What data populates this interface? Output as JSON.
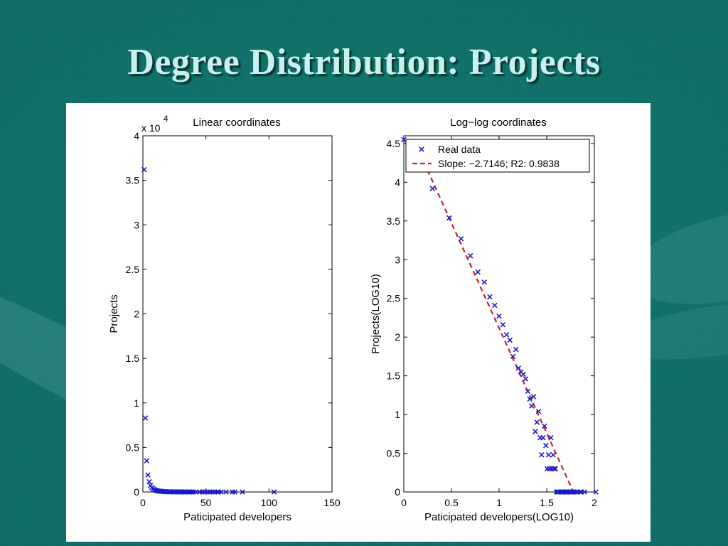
{
  "slide": {
    "title": "Degree Distribution: Projects"
  },
  "colors": {
    "marker": "#1a1acc",
    "fit_line": "#cc1f1f",
    "background": "#0f6e66",
    "title": "#c9f0ec"
  },
  "chart_data": [
    {
      "type": "scatter",
      "title": "Linear coordinates",
      "xlabel": "Paticipated developers",
      "ylabel": "Projects",
      "exponent_label": "x 10",
      "exponent_power": "4",
      "xlim": [
        0,
        150
      ],
      "ylim": [
        0,
        4
      ],
      "xticks": [
        0,
        50,
        100,
        150
      ],
      "yticks": [
        0,
        0.5,
        1,
        1.5,
        2,
        2.5,
        3,
        3.5,
        4
      ],
      "xtick_labels": [
        "0",
        "50",
        "100",
        "150"
      ],
      "ytick_labels": [
        "0",
        "0.5",
        "1",
        "1.5",
        "2",
        "2.5",
        "3",
        "3.5",
        "4"
      ],
      "grid": false,
      "marker": "x",
      "series": [
        {
          "x": [
            1,
            2,
            3,
            4,
            5,
            6,
            7,
            8,
            9,
            10,
            11,
            12,
            13,
            14,
            15,
            16,
            17,
            18,
            19,
            20,
            21,
            22,
            23,
            24,
            25,
            26,
            27,
            28,
            29,
            30,
            31,
            32,
            33,
            34,
            35,
            36,
            37,
            38,
            39,
            40,
            42,
            45,
            47,
            49,
            51,
            53,
            55,
            57,
            59,
            60,
            62,
            66,
            71,
            73,
            79,
            104
          ],
          "y": [
            3.62,
            0.83,
            0.35,
            0.19,
            0.115,
            0.072,
            0.05,
            0.036,
            0.027,
            0.02,
            0.015,
            0.012,
            0.01,
            0.008,
            0.006,
            0.005,
            0.004,
            0.003,
            0.0025,
            0.002,
            0.0018,
            0.0015,
            0.0012,
            0.001,
            0.001,
            0.0008,
            0.0007,
            0.0006,
            0.0005,
            0.0005,
            0.0004,
            0.0004,
            0.0003,
            0.0003,
            0.0003,
            0.0002,
            0.0002,
            0.0002,
            0.0002,
            0.0001,
            0.0001,
            0.0001,
            0.0001,
            0.0001,
            0.0001,
            0.0001,
            0.0001,
            0.0001,
            0.0001,
            0.0001,
            0.0001,
            0.0001,
            0.0001,
            0.0001,
            0.0001,
            0.0001
          ]
        }
      ]
    },
    {
      "type": "scatter",
      "title": "Log−log coordinates",
      "xlabel": "Paticipated developers(LOG10)",
      "ylabel": "Projects(LOG10)",
      "xlim": [
        0,
        2
      ],
      "ylim": [
        0,
        4.6
      ],
      "xticks": [
        0,
        0.5,
        1,
        1.5,
        2
      ],
      "yticks": [
        0,
        0.5,
        1,
        1.5,
        2,
        2.5,
        3,
        3.5,
        4,
        4.5
      ],
      "xtick_labels": [
        "0",
        "0.5",
        "1",
        "1.5",
        "2"
      ],
      "ytick_labels": [
        "0",
        "0.5",
        "1",
        "1.5",
        "2",
        "2.5",
        "3",
        "3.5",
        "4",
        "4.5"
      ],
      "grid": false,
      "legend_position": "top",
      "series": [
        {
          "name": "Real data",
          "marker": "x",
          "x": [
            0,
            0.301,
            0.477,
            0.602,
            0.699,
            0.778,
            0.845,
            0.903,
            0.954,
            1.0,
            1.041,
            1.079,
            1.114,
            1.146,
            1.176,
            1.204,
            1.23,
            1.255,
            1.279,
            1.301,
            1.322,
            1.342,
            1.362,
            1.38,
            1.398,
            1.415,
            1.431,
            1.447,
            1.462,
            1.477,
            1.491,
            1.505,
            1.519,
            1.531,
            1.544,
            1.556,
            1.568,
            1.58,
            1.591,
            1.602,
            1.613,
            1.623,
            1.653,
            1.663,
            1.672,
            1.681,
            1.699,
            1.708,
            1.716,
            1.732,
            1.748,
            1.756,
            1.771,
            1.785,
            1.799,
            1.82,
            1.851,
            1.863,
            1.898,
            2.017
          ],
          "y": [
            4.55,
            3.92,
            3.54,
            3.27,
            3.05,
            2.84,
            2.71,
            2.52,
            2.41,
            2.27,
            2.16,
            2.03,
            1.96,
            1.75,
            1.84,
            1.6,
            1.55,
            1.52,
            1.46,
            1.3,
            1.2,
            1.11,
            1.23,
            0.78,
            0.9,
            1.04,
            0.7,
            0.48,
            0.7,
            0.85,
            0.6,
            0.3,
            0.48,
            0.3,
            0.7,
            0.3,
            0.48,
            0.3,
            0.3,
            0,
            0,
            0,
            0,
            0,
            0,
            0,
            0,
            0,
            0,
            0,
            0,
            0,
            0,
            0,
            0,
            0,
            0,
            0,
            0,
            0
          ]
        },
        {
          "name": "Slope: −2.7146; R2: 0.9838",
          "type": "line",
          "style": "dashed",
          "slope": -2.7146,
          "x": [
            0.1,
            1.78
          ],
          "y": [
            4.56,
            0
          ]
        }
      ]
    }
  ]
}
